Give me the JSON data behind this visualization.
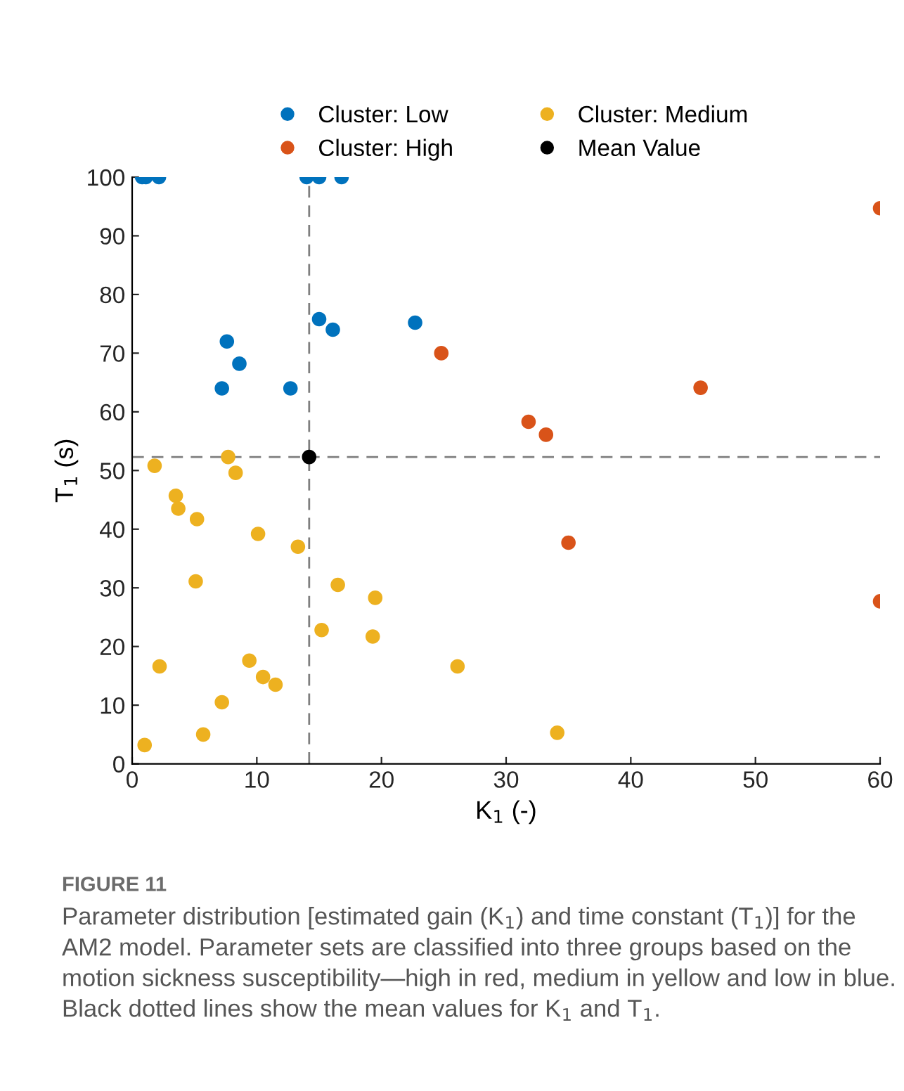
{
  "chart_data": {
    "type": "scatter",
    "xlabel": "K$_{1}$ (-)",
    "ylabel": "T$_{1}$ (s)",
    "xlim": [
      0,
      60
    ],
    "ylim": [
      0,
      100
    ],
    "xticks": [
      0,
      10,
      20,
      30,
      40,
      50,
      60
    ],
    "yticks": [
      0,
      10,
      20,
      30,
      40,
      50,
      60,
      70,
      80,
      90,
      100
    ],
    "grid": false,
    "legend": "top",
    "marker": "circle",
    "series": [
      {
        "name": "Cluster: Low",
        "color": "#0072bd",
        "x": [
          0.8,
          1.1,
          2.15,
          14.0,
          15.0,
          16.8,
          7.6,
          8.6,
          7.2,
          12.7,
          15.0,
          16.1,
          22.7
        ],
        "values": [
          100,
          100,
          100,
          100,
          100,
          100,
          72.0,
          68.2,
          64.0,
          64.0,
          75.8,
          74.0,
          75.2
        ]
      },
      {
        "name": "Cluster: High",
        "color": "#d95319",
        "x": [
          24.8,
          60.0,
          45.6,
          31.8,
          33.2,
          35.0,
          60.0
        ],
        "values": [
          70.0,
          94.7,
          64.1,
          58.3,
          56.1,
          37.7,
          27.7
        ]
      },
      {
        "name": "Cluster: Medium",
        "color": "#edb120",
        "x": [
          26.1,
          34.1,
          1.8,
          7.7,
          8.3,
          3.5,
          3.7,
          5.2,
          10.1,
          13.3,
          5.1,
          16.5,
          19.5,
          15.2,
          19.3,
          2.2,
          9.4,
          10.5,
          11.5,
          7.2,
          5.7,
          1.0
        ],
        "values": [
          16.6,
          5.3,
          50.8,
          52.3,
          49.6,
          45.7,
          43.5,
          41.7,
          39.2,
          37.0,
          31.1,
          30.5,
          28.3,
          22.8,
          21.7,
          16.6,
          17.6,
          14.8,
          13.5,
          10.5,
          5.0,
          3.2
        ]
      },
      {
        "name": "Mean Value",
        "color": "#000000",
        "x": [
          14.2
        ],
        "values": [
          52.3
        ]
      }
    ],
    "ref_lines": [
      {
        "axis": "x",
        "value": 14.2,
        "color": "#7f7f7f",
        "line_style": "dashed"
      },
      {
        "axis": "y",
        "value": 52.3,
        "color": "#7f7f7f",
        "line_style": "dashed"
      }
    ],
    "annotations": [
      "FIGURE 11",
      "Parameter distribution [estimated gain (K$_{1}$) and time constant (T$_{1}$)] for the AM2 model. Parameter sets are classified into three groups based on the motion sickness susceptibility—high in red, medium in yellow and low in blue. Black dotted lines show the mean values for K$_{1}$ and T$_{1}$."
    ]
  }
}
